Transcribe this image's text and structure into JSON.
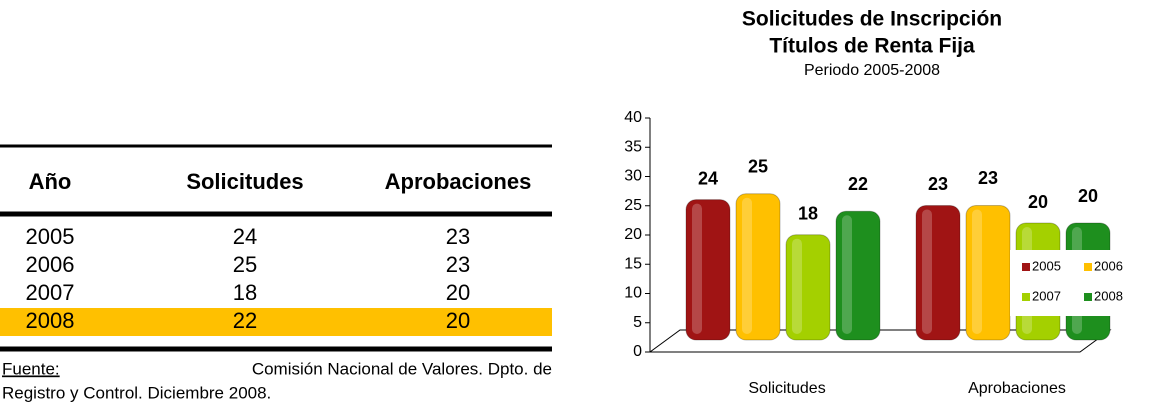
{
  "table": {
    "headers": [
      "Año",
      "Solicitudes",
      "Aprobaciones"
    ],
    "rows": [
      [
        "2005",
        "24",
        "23"
      ],
      [
        "2006",
        "25",
        "23"
      ],
      [
        "2007",
        "18",
        "20"
      ],
      [
        "2008",
        "22",
        "20"
      ]
    ],
    "highlight_color": "#ffc000",
    "source_label": "Fuente:",
    "source_line1": "Comisión Nacional de Valores. Dpto. de",
    "source_line2": "Registro y Control. Diciembre 2008."
  },
  "chart_data": {
    "type": "bar",
    "title": "Solicitudes de Inscripción",
    "title2": "Títulos de Renta Fija",
    "subtitle": "Periodo 2005-2008",
    "categories": [
      "Solicitudes",
      "Aprobaciones"
    ],
    "series": [
      {
        "name": "2005",
        "color": "#a01414",
        "values": [
          24,
          23
        ]
      },
      {
        "name": "2006",
        "color": "#ffc000",
        "values": [
          25,
          23
        ]
      },
      {
        "name": "2007",
        "color": "#a4d000",
        "values": [
          18,
          20
        ]
      },
      {
        "name": "2008",
        "color": "#1e8f1e",
        "values": [
          22,
          20
        ]
      }
    ],
    "ylim": [
      0,
      40
    ],
    "yticks": [
      0,
      5,
      10,
      15,
      20,
      25,
      30,
      35,
      40
    ],
    "legend": "right"
  }
}
